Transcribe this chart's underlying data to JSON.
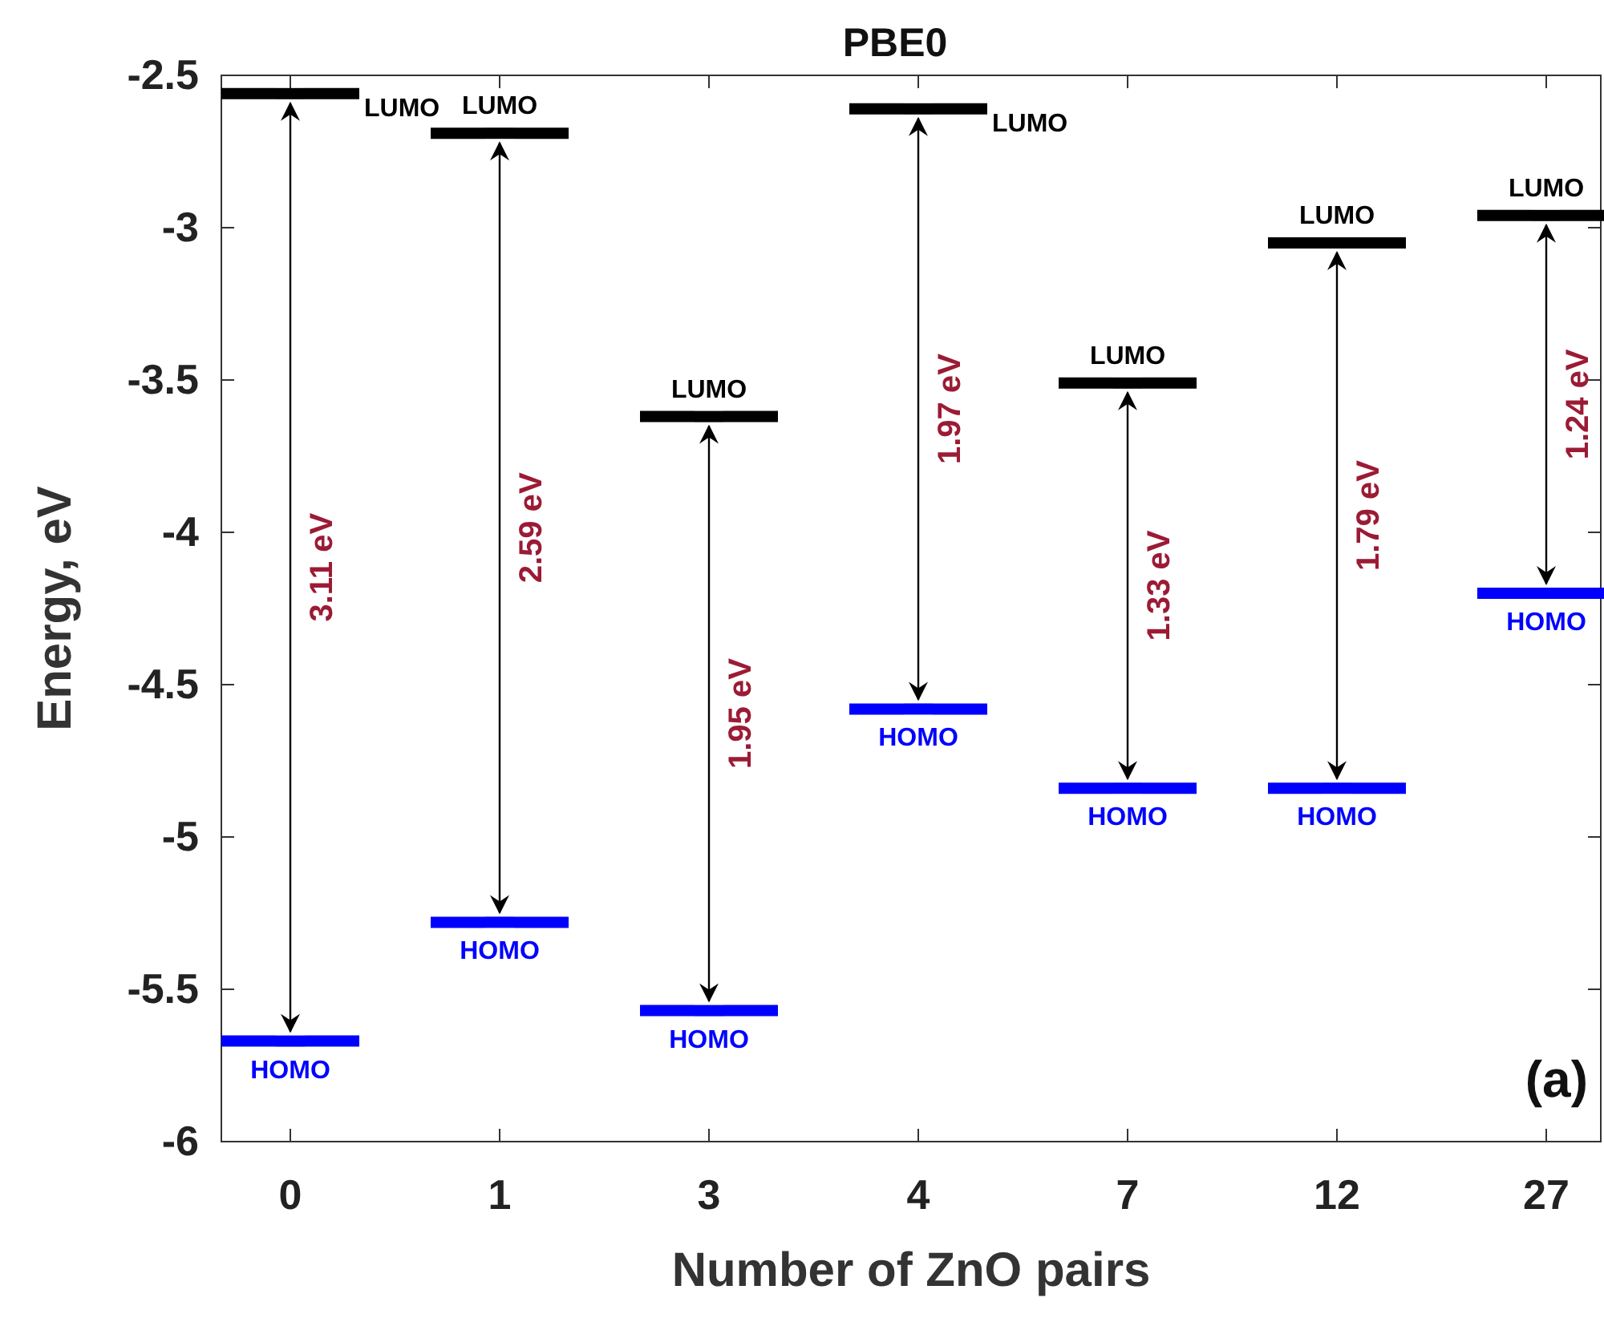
{
  "chart_data": {
    "type": "scatter",
    "title": "PBE0",
    "xlabel": "Number of ZnO pairs",
    "ylabel": "Energy, eV",
    "categories": [
      "0",
      "1",
      "3",
      "4",
      "7",
      "12",
      "27"
    ],
    "series": [
      {
        "name": "LUMO",
        "color": "#000000",
        "values": [
          -2.56,
          -2.69,
          -3.62,
          -2.61,
          -3.51,
          -3.05,
          -2.96
        ]
      },
      {
        "name": "HOMO",
        "color": "#0000ff",
        "values": [
          -5.67,
          -5.28,
          -5.57,
          -4.58,
          -4.84,
          -4.84,
          -4.2
        ]
      }
    ],
    "ylim": [
      -6,
      -2.5
    ],
    "yticks": [
      -6,
      -5.5,
      -5,
      -4.5,
      -4,
      -3.5,
      -3,
      -2.5
    ],
    "annotations": [
      "3.11 eV",
      "2.59 eV",
      "1.95 eV",
      "1.97 eV",
      "1.33 eV",
      "1.79 eV",
      "1.24 eV",
      "(a)"
    ]
  }
}
